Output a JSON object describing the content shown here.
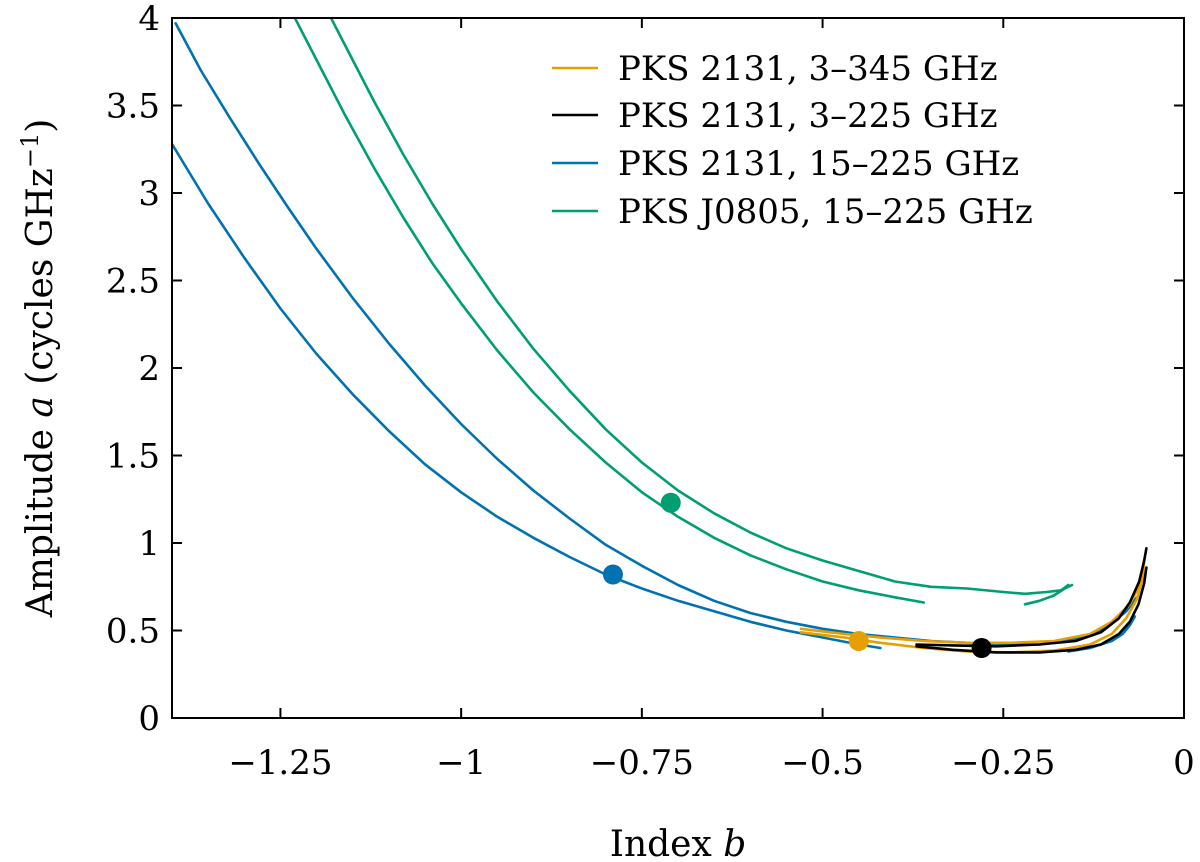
{
  "chart_data": {
    "type": "line",
    "xlabel": "Index",
    "xlabel_var": "b",
    "ylabel": "Amplitude",
    "ylabel_var": "a",
    "ylabel_unit": "(cycles GHz",
    "ylabel_unit_exp": "−1",
    "ylabel_unit_close": ")",
    "xlim": [
      -1.4,
      0
    ],
    "ylim": [
      0,
      4
    ],
    "x_ticks": [
      -1.25,
      -1,
      -0.75,
      -0.5,
      -0.25,
      0
    ],
    "x_tick_labels": [
      "−1.25",
      "−1",
      "−0.75",
      "−0.5",
      "−0.25",
      "0"
    ],
    "y_ticks": [
      0,
      0.5,
      1,
      1.5,
      2,
      2.5,
      3,
      3.5,
      4
    ],
    "y_tick_labels": [
      "0",
      "0.5",
      "1",
      "1.5",
      "2",
      "2.5",
      "3",
      "3.5",
      "4"
    ],
    "legend_position": "top-right",
    "series": [
      {
        "name": "PKS 2131, 3–345 GHz",
        "color": "#E69F00",
        "best_fit": [
          -0.45,
          0.44
        ],
        "contours": [
          [
            [
              -0.53,
              0.51
            ],
            [
              -0.47,
              0.48
            ],
            [
              -0.42,
              0.46
            ],
            [
              -0.36,
              0.44
            ],
            [
              -0.3,
              0.43
            ],
            [
              -0.24,
              0.43
            ],
            [
              -0.18,
              0.44
            ],
            [
              -0.13,
              0.48
            ],
            [
              -0.1,
              0.55
            ],
            [
              -0.075,
              0.65
            ],
            [
              -0.06,
              0.77
            ],
            [
              -0.055,
              0.9
            ]
          ],
          [
            [
              -0.53,
              0.49
            ],
            [
              -0.47,
              0.46
            ],
            [
              -0.42,
              0.43
            ],
            [
              -0.36,
              0.4
            ],
            [
              -0.3,
              0.38
            ],
            [
              -0.24,
              0.375
            ],
            [
              -0.18,
              0.385
            ],
            [
              -0.13,
              0.42
            ],
            [
              -0.1,
              0.48
            ],
            [
              -0.08,
              0.57
            ],
            [
              -0.065,
              0.68
            ],
            [
              -0.057,
              0.8
            ],
            [
              -0.055,
              0.9
            ]
          ]
        ]
      },
      {
        "name": "PKS 2131, 3–225 GHz",
        "color": "#000000",
        "best_fit": [
          -0.28,
          0.4
        ],
        "contours": [
          [
            [
              -0.37,
              0.42
            ],
            [
              -0.32,
              0.415
            ],
            [
              -0.26,
              0.41
            ],
            [
              -0.2,
              0.42
            ],
            [
              -0.15,
              0.44
            ],
            [
              -0.115,
              0.49
            ],
            [
              -0.09,
              0.57
            ],
            [
              -0.075,
              0.66
            ],
            [
              -0.062,
              0.78
            ],
            [
              -0.055,
              0.9
            ],
            [
              -0.052,
              0.97
            ]
          ],
          [
            [
              -0.37,
              0.41
            ],
            [
              -0.32,
              0.39
            ],
            [
              -0.26,
              0.375
            ],
            [
              -0.2,
              0.375
            ],
            [
              -0.15,
              0.39
            ],
            [
              -0.115,
              0.42
            ],
            [
              -0.09,
              0.48
            ],
            [
              -0.075,
              0.55
            ],
            [
              -0.063,
              0.65
            ],
            [
              -0.055,
              0.77
            ],
            [
              -0.052,
              0.86
            ]
          ]
        ]
      },
      {
        "name": "PKS 2131, 15–225 GHz",
        "color": "#0072B2",
        "best_fit": [
          -0.79,
          0.82
        ],
        "contours": [
          [
            [
              -1.395,
              3.97
            ],
            [
              -1.36,
              3.7
            ],
            [
              -1.32,
              3.43
            ],
            [
              -1.28,
              3.17
            ],
            [
              -1.24,
              2.92
            ],
            [
              -1.2,
              2.68
            ],
            [
              -1.15,
              2.4
            ],
            [
              -1.1,
              2.14
            ],
            [
              -1.05,
              1.9
            ],
            [
              -1.0,
              1.68
            ],
            [
              -0.95,
              1.48
            ],
            [
              -0.9,
              1.3
            ],
            [
              -0.85,
              1.14
            ],
            [
              -0.8,
              0.99
            ],
            [
              -0.75,
              0.87
            ],
            [
              -0.7,
              0.76
            ],
            [
              -0.65,
              0.67
            ],
            [
              -0.6,
              0.6
            ],
            [
              -0.55,
              0.55
            ],
            [
              -0.5,
              0.51
            ],
            [
              -0.45,
              0.48
            ],
            [
              -0.4,
              0.46
            ],
            [
              -0.35,
              0.44
            ],
            [
              -0.3,
              0.43
            ],
            [
              -0.25,
              0.42
            ],
            [
              -0.2,
              0.42
            ],
            [
              -0.15,
              0.45
            ],
            [
              -0.12,
              0.49
            ],
            [
              -0.1,
              0.54
            ],
            [
              -0.08,
              0.61
            ],
            [
              -0.065,
              0.69
            ]
          ],
          [
            [
              -1.4,
              3.28
            ],
            [
              -1.35,
              2.94
            ],
            [
              -1.3,
              2.63
            ],
            [
              -1.25,
              2.34
            ],
            [
              -1.2,
              2.08
            ],
            [
              -1.15,
              1.85
            ],
            [
              -1.1,
              1.64
            ],
            [
              -1.05,
              1.45
            ],
            [
              -1.0,
              1.29
            ],
            [
              -0.95,
              1.15
            ],
            [
              -0.9,
              1.03
            ],
            [
              -0.85,
              0.92
            ],
            [
              -0.8,
              0.82
            ],
            [
              -0.75,
              0.74
            ],
            [
              -0.7,
              0.67
            ],
            [
              -0.65,
              0.61
            ],
            [
              -0.6,
              0.55
            ],
            [
              -0.55,
              0.5
            ],
            [
              -0.5,
              0.46
            ],
            [
              -0.45,
              0.42
            ],
            [
              -0.42,
              0.4
            ]
          ],
          [
            [
              -0.16,
              0.38
            ],
            [
              -0.13,
              0.4
            ],
            [
              -0.1,
              0.44
            ],
            [
              -0.085,
              0.48
            ],
            [
              -0.075,
              0.53
            ],
            [
              -0.068,
              0.58
            ]
          ]
        ]
      },
      {
        "name": "PKS J0805, 15–225 GHz",
        "color": "#009E73",
        "best_fit": [
          -0.71,
          1.23
        ],
        "contours": [
          [
            [
              -1.18,
              4.0
            ],
            [
              -1.15,
              3.76
            ],
            [
              -1.12,
              3.52
            ],
            [
              -1.08,
              3.22
            ],
            [
              -1.04,
              2.94
            ],
            [
              -1.0,
              2.68
            ],
            [
              -0.95,
              2.38
            ],
            [
              -0.9,
              2.11
            ],
            [
              -0.85,
              1.87
            ],
            [
              -0.8,
              1.65
            ],
            [
              -0.75,
              1.46
            ],
            [
              -0.7,
              1.3
            ],
            [
              -0.65,
              1.17
            ],
            [
              -0.6,
              1.06
            ],
            [
              -0.55,
              0.97
            ],
            [
              -0.5,
              0.9
            ],
            [
              -0.45,
              0.84
            ],
            [
              -0.4,
              0.78
            ],
            [
              -0.35,
              0.75
            ],
            [
              -0.3,
              0.74
            ],
            [
              -0.25,
              0.72
            ],
            [
              -0.22,
              0.71
            ],
            [
              -0.19,
              0.72
            ],
            [
              -0.17,
              0.73
            ],
            [
              -0.16,
              0.76
            ]
          ],
          [
            [
              -1.23,
              4.0
            ],
            [
              -1.2,
              3.76
            ],
            [
              -1.16,
              3.44
            ],
            [
              -1.12,
              3.14
            ],
            [
              -1.08,
              2.86
            ],
            [
              -1.04,
              2.6
            ],
            [
              -1.0,
              2.37
            ],
            [
              -0.95,
              2.1
            ],
            [
              -0.9,
              1.86
            ],
            [
              -0.85,
              1.65
            ],
            [
              -0.8,
              1.46
            ],
            [
              -0.75,
              1.29
            ],
            [
              -0.7,
              1.15
            ],
            [
              -0.65,
              1.03
            ],
            [
              -0.6,
              0.93
            ],
            [
              -0.55,
              0.85
            ],
            [
              -0.5,
              0.78
            ],
            [
              -0.45,
              0.73
            ],
            [
              -0.4,
              0.69
            ],
            [
              -0.36,
              0.66
            ]
          ],
          [
            [
              -0.22,
              0.65
            ],
            [
              -0.2,
              0.67
            ],
            [
              -0.18,
              0.7
            ],
            [
              -0.165,
              0.74
            ],
            [
              -0.155,
              0.76
            ]
          ]
        ]
      }
    ]
  }
}
